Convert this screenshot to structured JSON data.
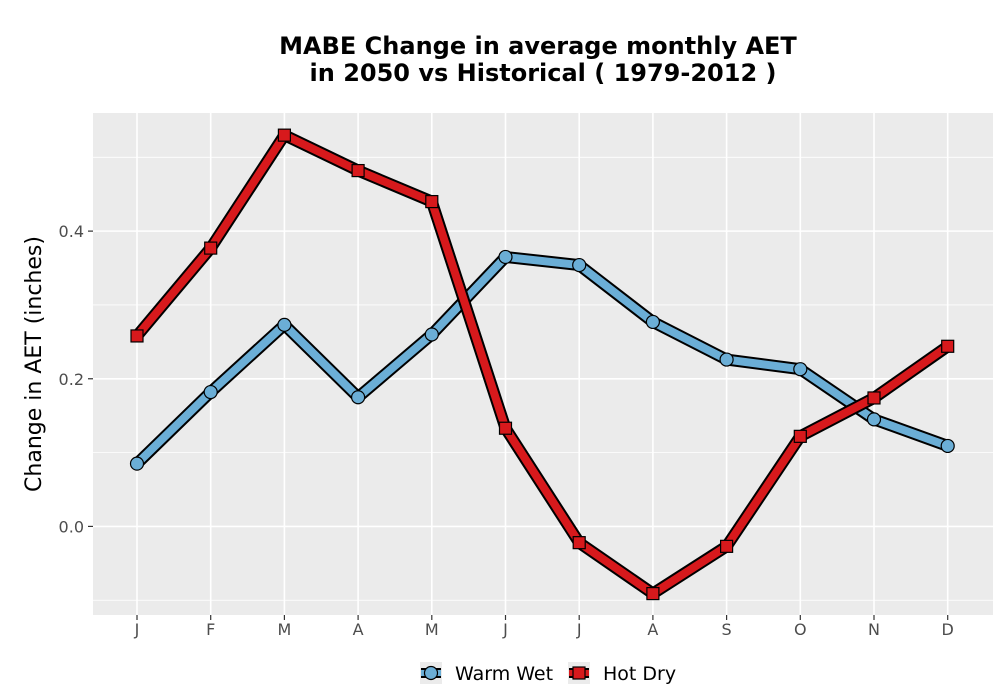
{
  "chart_data": {
    "type": "line",
    "title_line1": "MABE  Change in average monthly AET",
    "title_line2": "in 2050 vs Historical ( 1979-2012 )",
    "xlabel": "",
    "ylabel": "Change in AET (inches)",
    "categories": [
      "J",
      "F",
      "M",
      "A",
      "M",
      "J",
      "J",
      "A",
      "S",
      "O",
      "N",
      "D"
    ],
    "ylim": [
      -0.12,
      0.56
    ],
    "yticks": [
      0.0,
      0.2,
      0.4
    ],
    "ytick_labels": [
      "0.0",
      "0.2",
      "0.4"
    ],
    "grid": true,
    "legend_position": "bottom",
    "series": [
      {
        "name": "Warm Wet",
        "color": "#6baed6",
        "marker": "circle",
        "values": [
          0.085,
          0.182,
          0.273,
          0.175,
          0.26,
          0.365,
          0.354,
          0.277,
          0.226,
          0.213,
          0.145,
          0.109
        ]
      },
      {
        "name": "Hot Dry",
        "color": "#d7191c",
        "marker": "square",
        "values": [
          0.258,
          0.377,
          0.53,
          0.482,
          0.44,
          0.133,
          -0.022,
          -0.091,
          -0.027,
          0.122,
          0.174,
          0.244
        ]
      }
    ],
    "colors": {
      "panel_background": "#ebebeb",
      "grid_line": "#ffffff",
      "tick_text": "#4d4d4d"
    }
  }
}
